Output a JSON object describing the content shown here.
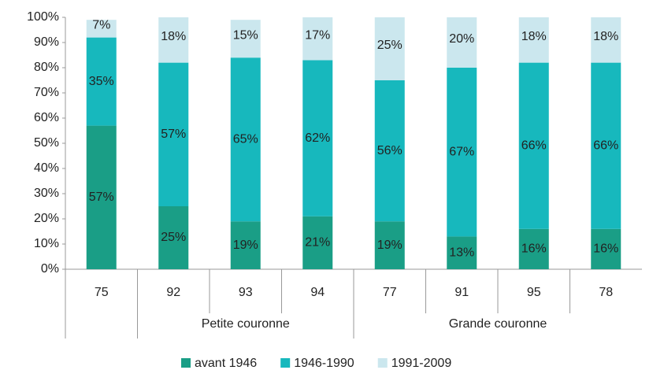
{
  "chart_data": {
    "type": "stacked_bar",
    "categories": [
      "75",
      "92",
      "93",
      "94",
      "77",
      "91",
      "95",
      "78"
    ],
    "groups": [
      {
        "label": null,
        "size": 1
      },
      {
        "label": "Petite couronne",
        "size": 3
      },
      {
        "label": "Grande couronne",
        "size": 4
      }
    ],
    "series": [
      {
        "name": "avant 1946",
        "color": "#1a9e86",
        "values": [
          57,
          25,
          19,
          21,
          19,
          13,
          16,
          16
        ],
        "value_labels": [
          "57%",
          "25%",
          "19%",
          "21%",
          "19%",
          "13%",
          "16%",
          "16%"
        ]
      },
      {
        "name": "1946-1990",
        "color": "#17b8bd",
        "values": [
          35,
          57,
          65,
          62,
          56,
          67,
          66,
          66
        ],
        "value_labels": [
          "35%",
          "57%",
          "65%",
          "62%",
          "56%",
          "67%",
          "66%",
          "66%"
        ]
      },
      {
        "name": "1991-2009",
        "color": "#cbe7ee",
        "values": [
          7,
          18,
          15,
          17,
          25,
          20,
          18,
          18
        ],
        "value_labels": [
          "7%",
          "18%",
          "15%",
          "17%",
          "25%",
          "20%",
          "18%",
          "18%"
        ]
      }
    ],
    "ylim": [
      0,
      100
    ],
    "yticks": [
      {
        "value": 0,
        "label": "0%"
      },
      {
        "value": 10,
        "label": "10%"
      },
      {
        "value": 20,
        "label": "20%"
      },
      {
        "value": 30,
        "label": "30%"
      },
      {
        "value": 40,
        "label": "40%"
      },
      {
        "value": 50,
        "label": "50%"
      },
      {
        "value": 60,
        "label": "60%"
      },
      {
        "value": 70,
        "label": "70%"
      },
      {
        "value": 80,
        "label": "80%"
      },
      {
        "value": 90,
        "label": "90%"
      },
      {
        "value": 100,
        "label": "100%"
      }
    ],
    "legend": "bottom",
    "grid": false
  }
}
